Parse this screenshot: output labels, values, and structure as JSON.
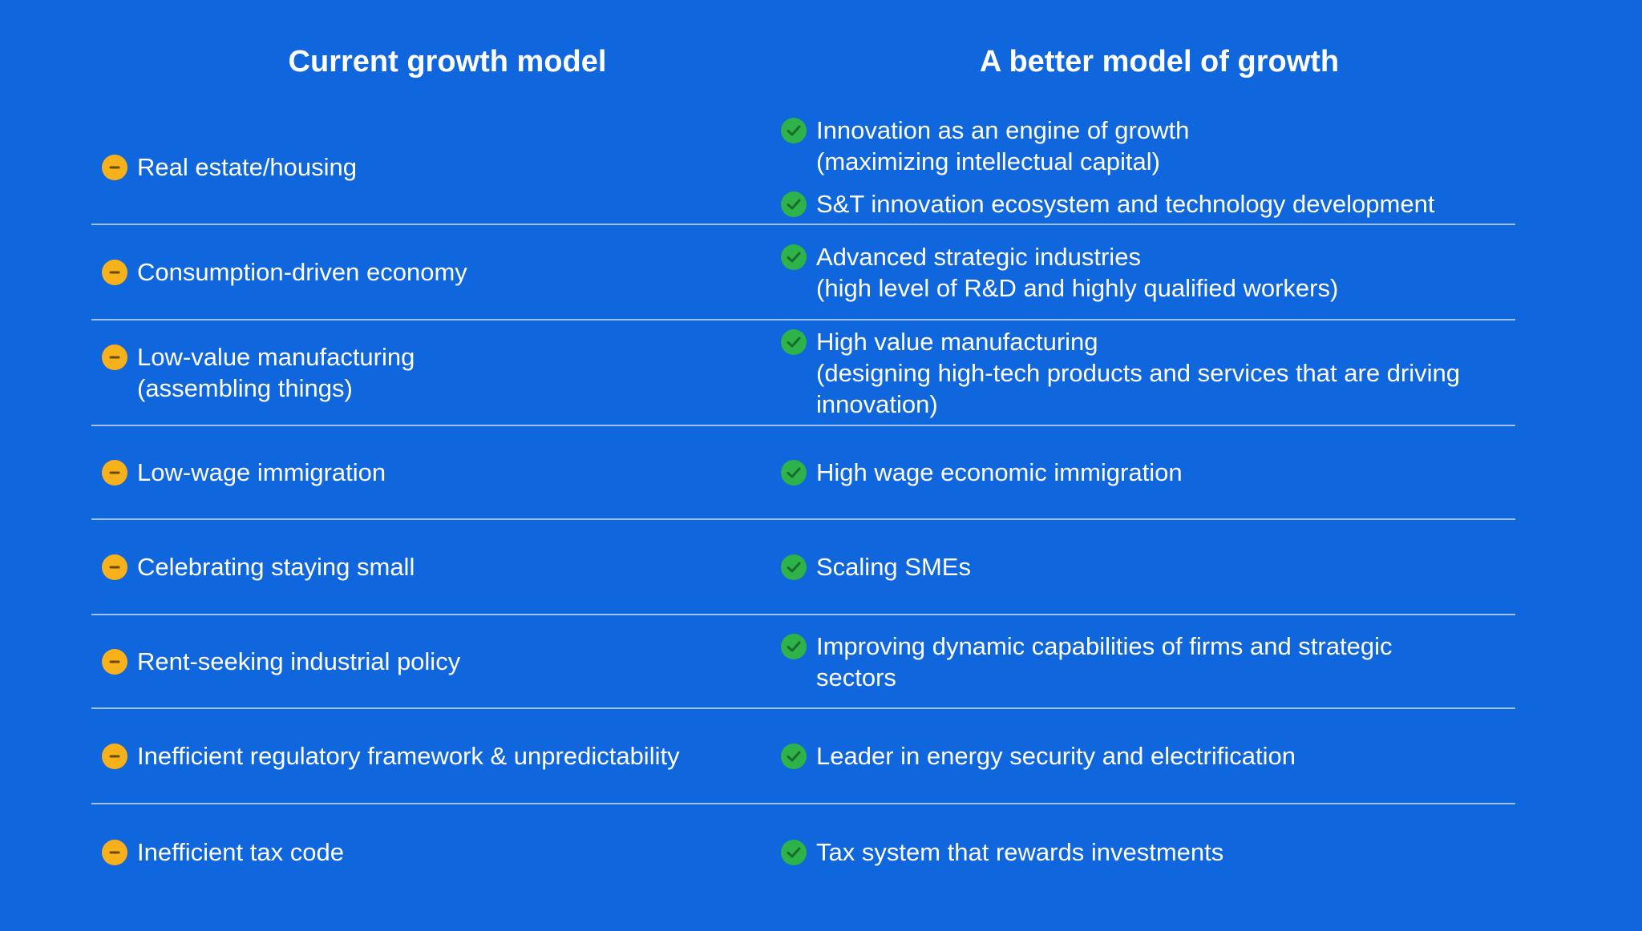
{
  "headers": {
    "current": "Current growth model",
    "better": "A better model of growth"
  },
  "rows": [
    {
      "current": [
        [
          "Real estate/housing"
        ]
      ],
      "better": [
        [
          "Innovation as an engine of growth",
          "(maximizing intellectual capital)"
        ],
        [
          "S&T innovation ecosystem and technology development"
        ]
      ]
    },
    {
      "current": [
        [
          "Consumption-driven economy"
        ]
      ],
      "better": [
        [
          "Advanced strategic industries",
          "(high level of R&D and highly qualified workers)"
        ]
      ]
    },
    {
      "current": [
        [
          "Low-value manufacturing",
          "(assembling things)"
        ]
      ],
      "better": [
        [
          "High value manufacturing",
          "(designing high-tech products and services that are driving",
          "innovation)"
        ]
      ]
    },
    {
      "current": [
        [
          "Low-wage immigration"
        ]
      ],
      "better": [
        [
          "High wage economic immigration"
        ]
      ]
    },
    {
      "current": [
        [
          "Celebrating staying small"
        ]
      ],
      "better": [
        [
          "Scaling SMEs"
        ]
      ]
    },
    {
      "current": [
        [
          "Rent-seeking industrial policy"
        ]
      ],
      "better": [
        [
          "Improving dynamic capabilities of firms and strategic",
          "sectors"
        ]
      ]
    },
    {
      "current": [
        [
          "Inefficient regulatory framework & unpredictability"
        ]
      ],
      "better": [
        [
          "Leader in energy security and electrification"
        ]
      ]
    },
    {
      "current": [
        [
          "Inefficient tax code"
        ]
      ],
      "better": [
        [
          "Tax system that rewards investments"
        ]
      ]
    }
  ]
}
